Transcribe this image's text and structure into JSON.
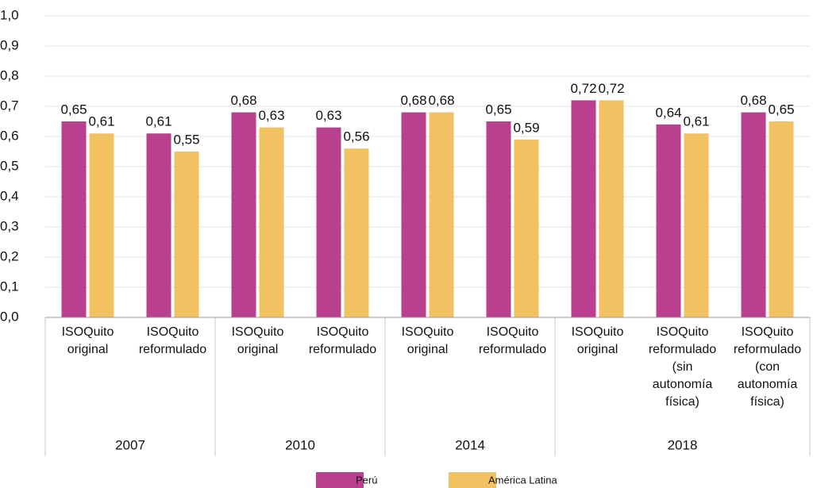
{
  "chart_data": {
    "type": "bar",
    "groups": [
      {
        "name": "2007",
        "categories": [
          [
            "ISOQuito",
            "original"
          ],
          [
            "ISOQuito",
            "reformulado"
          ]
        ]
      },
      {
        "name": "2010",
        "categories": [
          [
            "ISOQuito",
            "original"
          ],
          [
            "ISOQuito",
            "reformulado"
          ]
        ]
      },
      {
        "name": "2014",
        "categories": [
          [
            "ISOQuito",
            "original"
          ],
          [
            "ISOQuito",
            "reformulado"
          ]
        ]
      },
      {
        "name": "2018",
        "categories": [
          [
            "ISOQuito",
            "original"
          ],
          [
            "ISOQuito",
            "reformulado",
            "(sin",
            "autonomía",
            "física)"
          ],
          [
            "ISOQuito",
            "reformulado",
            "(con",
            "autonomía",
            "física)"
          ]
        ]
      }
    ],
    "series": [
      {
        "name": "Perú",
        "color": "#b9408f",
        "values": [
          0.65,
          0.61,
          0.68,
          0.63,
          0.68,
          0.65,
          0.72,
          0.64,
          0.68
        ],
        "value_labels": [
          "0,65",
          "0,61",
          "0,68",
          "0,63",
          "0,68",
          "0,65",
          "0,72",
          "0,64",
          "0,68"
        ]
      },
      {
        "name": "América Latina",
        "color": "#f2c262",
        "values": [
          0.61,
          0.55,
          0.63,
          0.56,
          0.68,
          0.59,
          0.72,
          0.61,
          0.65
        ],
        "value_labels": [
          "0,61",
          "0,55",
          "0,63",
          "0,56",
          "0,68",
          "0,59",
          "0,72",
          "0,61",
          "0,65"
        ]
      }
    ],
    "ylim": [
      0,
      1
    ],
    "yticks": [
      {
        "value": 0,
        "label": "0,0"
      },
      {
        "value": 0.1,
        "label": "0,1"
      },
      {
        "value": 0.2,
        "label": "0,2"
      },
      {
        "value": 0.3,
        "label": "0,3"
      },
      {
        "value": 0.4,
        "label": "0,4"
      },
      {
        "value": 0.5,
        "label": "0,5"
      },
      {
        "value": 0.6,
        "label": "0,6"
      },
      {
        "value": 0.7,
        "label": "0,7"
      },
      {
        "value": 0.8,
        "label": "0,8"
      },
      {
        "value": 0.9,
        "label": "0,9"
      },
      {
        "value": 1,
        "label": "1,0"
      }
    ],
    "grid": true,
    "legend": "bottom"
  }
}
